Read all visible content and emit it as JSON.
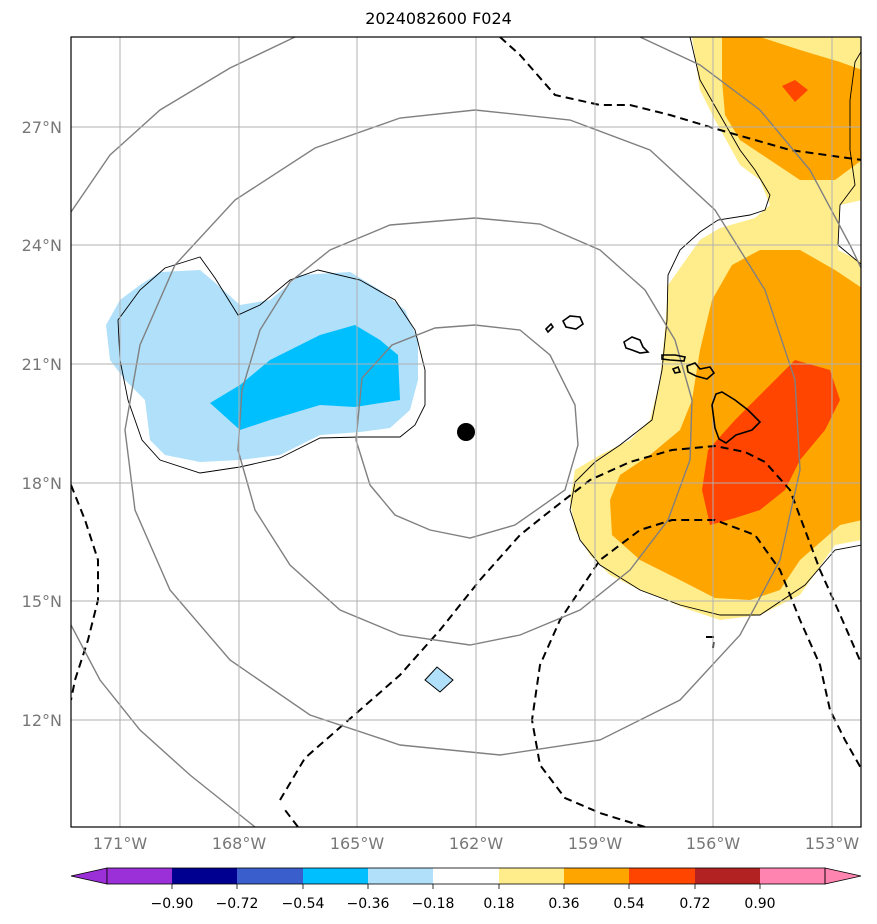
{
  "title": "2024082600 F024",
  "lat_ticks": [
    {
      "value": 27,
      "label": "27°N"
    },
    {
      "value": 24,
      "label": "24°N"
    },
    {
      "value": 21,
      "label": "21°N"
    },
    {
      "value": 18,
      "label": "18°N"
    },
    {
      "value": 15,
      "label": "15°N"
    },
    {
      "value": 12,
      "label": "12°N"
    }
  ],
  "lon_ticks": [
    {
      "value": -171,
      "label": "171°W"
    },
    {
      "value": -168,
      "label": "168°W"
    },
    {
      "value": -165,
      "label": "165°W"
    },
    {
      "value": -162,
      "label": "162°W"
    },
    {
      "value": -159,
      "label": "159°W"
    },
    {
      "value": -156,
      "label": "156°W"
    },
    {
      "value": -153,
      "label": "153°W"
    }
  ],
  "extent": {
    "lon": [
      -172.2,
      -152.3
    ],
    "lat": [
      9.8,
      29.3
    ]
  },
  "storm_center": {
    "lon": -162.25,
    "lat": 19.3
  },
  "colorbar": {
    "labels": [
      "−0.90",
      "−0.72",
      "−0.54",
      "−0.36",
      "−0.18",
      "0.18",
      "0.36",
      "0.54",
      "0.72",
      "0.90"
    ],
    "under_color": "#9b30d9",
    "over_color": "#ff85b0",
    "colors": [
      "#9b30d9",
      "#000090",
      "#3a5fcd",
      "#00bfff",
      "#b0e0fa",
      "#ffffff",
      "#ffec8b",
      "#ffa500",
      "#ff4500",
      "#b22222",
      "#ff85b0"
    ]
  },
  "colors": {
    "grid": "#b0b0b0",
    "range_rings": "#808080",
    "contour": "#000000",
    "coast": "#000000"
  }
}
